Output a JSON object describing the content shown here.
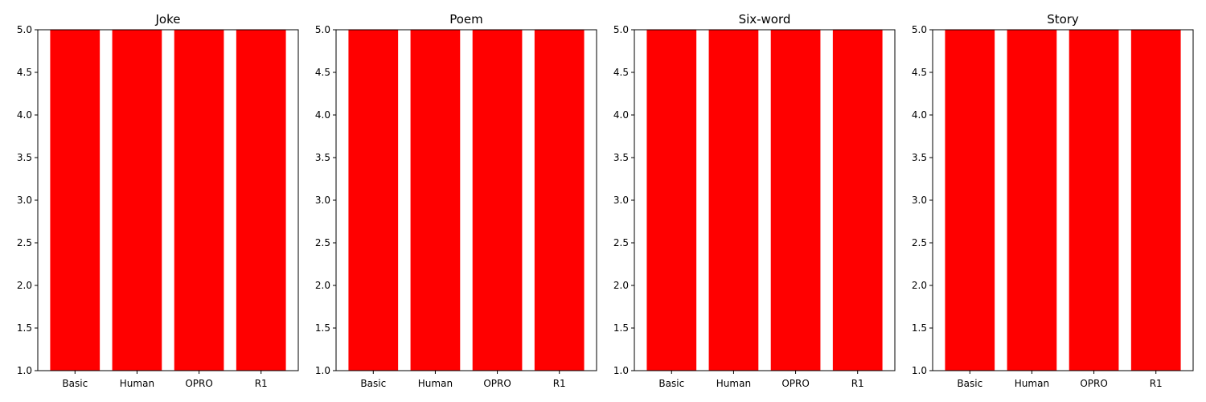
{
  "chart_data": [
    {
      "type": "bar",
      "title": "Joke",
      "categories": [
        "Basic",
        "Human",
        "OPRO",
        "R1"
      ],
      "values": [
        5.0,
        5.0,
        5.0,
        5.0
      ],
      "ylim": [
        1.0,
        5.0
      ],
      "yticks": [
        "1.0",
        "1.5",
        "2.0",
        "2.5",
        "3.0",
        "3.5",
        "4.0",
        "4.5",
        "5.0"
      ],
      "xlabel": "",
      "ylabel": "",
      "bar_color": "#ff0000",
      "grid": false
    },
    {
      "type": "bar",
      "title": "Poem",
      "categories": [
        "Basic",
        "Human",
        "OPRO",
        "R1"
      ],
      "values": [
        5.0,
        5.0,
        5.0,
        5.0
      ],
      "ylim": [
        1.0,
        5.0
      ],
      "yticks": [
        "1.0",
        "1.5",
        "2.0",
        "2.5",
        "3.0",
        "3.5",
        "4.0",
        "4.5",
        "5.0"
      ],
      "xlabel": "",
      "ylabel": "",
      "bar_color": "#ff0000",
      "grid": false
    },
    {
      "type": "bar",
      "title": "Six-word",
      "categories": [
        "Basic",
        "Human",
        "OPRO",
        "R1"
      ],
      "values": [
        5.0,
        5.0,
        5.0,
        5.0
      ],
      "ylim": [
        1.0,
        5.0
      ],
      "yticks": [
        "1.0",
        "1.5",
        "2.0",
        "2.5",
        "3.0",
        "3.5",
        "4.0",
        "4.5",
        "5.0"
      ],
      "xlabel": "",
      "ylabel": "",
      "bar_color": "#ff0000",
      "grid": false
    },
    {
      "type": "bar",
      "title": "Story",
      "categories": [
        "Basic",
        "Human",
        "OPRO",
        "R1"
      ],
      "values": [
        5.0,
        5.0,
        5.0,
        5.0
      ],
      "ylim": [
        1.0,
        5.0
      ],
      "yticks": [
        "1.0",
        "1.5",
        "2.0",
        "2.5",
        "3.0",
        "3.5",
        "4.0",
        "4.5",
        "5.0"
      ],
      "xlabel": "",
      "ylabel": "",
      "bar_color": "#ff0000",
      "grid": false
    }
  ]
}
